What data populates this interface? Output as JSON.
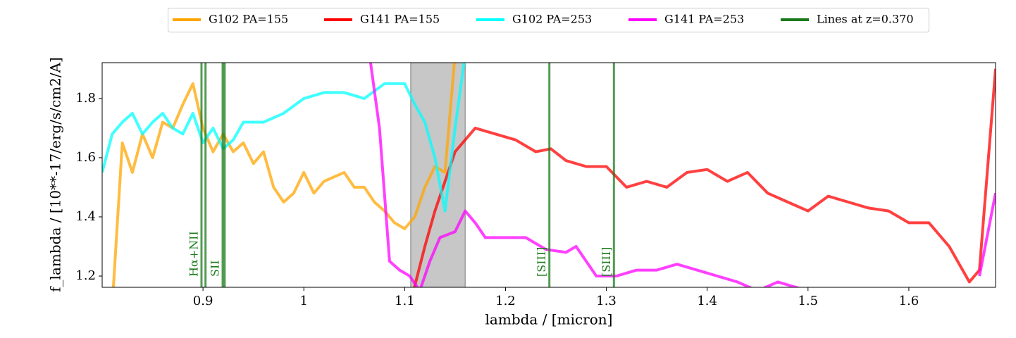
{
  "chart_data": {
    "type": "line",
    "xlabel": "lambda / [micron]",
    "ylabel": "f_lambda / [10**-17/erg/s/cm2/A]",
    "xlim": [
      0.8,
      1.686
    ],
    "ylim": [
      1.162,
      1.921
    ],
    "xticks": [
      0.9,
      1.0,
      1.1,
      1.2,
      1.3,
      1.4,
      1.5,
      1.6
    ],
    "yticks": [
      1.2,
      1.4,
      1.6,
      1.8
    ],
    "shaded_region": [
      1.106,
      1.16
    ],
    "lines_name": "Lines at z=0.370",
    "lines_color": "#1a7a1a",
    "lines": [
      {
        "x": 0.8985,
        "label": "Hα+NII"
      },
      {
        "x": 0.9025
      },
      {
        "x": 0.9195,
        "label": "SII"
      },
      {
        "x": 0.9215
      },
      {
        "x": 1.2435,
        "label": "[SIII]"
      },
      {
        "x": 1.3075,
        "label": "[SIII]"
      }
    ],
    "series": [
      {
        "name": "G102 PA=155",
        "color": "orange",
        "x": [
          0.8,
          0.81,
          0.82,
          0.83,
          0.84,
          0.85,
          0.86,
          0.87,
          0.88,
          0.89,
          0.9,
          0.91,
          0.92,
          0.93,
          0.94,
          0.95,
          0.96,
          0.97,
          0.98,
          0.99,
          1.0,
          1.01,
          1.02,
          1.04,
          1.05,
          1.06,
          1.07,
          1.08,
          1.09,
          1.1,
          1.11,
          1.12,
          1.13,
          1.14,
          1.15
        ],
        "values": [
          1.0,
          1.1,
          1.65,
          1.55,
          1.68,
          1.6,
          1.72,
          1.7,
          1.78,
          1.85,
          1.7,
          1.62,
          1.68,
          1.62,
          1.65,
          1.58,
          1.62,
          1.5,
          1.45,
          1.48,
          1.55,
          1.48,
          1.52,
          1.55,
          1.5,
          1.5,
          1.45,
          1.42,
          1.38,
          1.36,
          1.4,
          1.5,
          1.57,
          1.55,
          1.95
        ]
      },
      {
        "name": "G141 PA=155",
        "color": "red",
        "x": [
          1.105,
          1.12,
          1.13,
          1.15,
          1.17,
          1.19,
          1.21,
          1.23,
          1.245,
          1.26,
          1.28,
          1.3,
          1.32,
          1.34,
          1.36,
          1.38,
          1.4,
          1.42,
          1.44,
          1.46,
          1.48,
          1.5,
          1.52,
          1.54,
          1.56,
          1.58,
          1.6,
          1.62,
          1.64,
          1.66,
          1.67,
          1.686
        ],
        "values": [
          1.1,
          1.3,
          1.42,
          1.62,
          1.7,
          1.68,
          1.66,
          1.62,
          1.63,
          1.59,
          1.57,
          1.57,
          1.5,
          1.52,
          1.5,
          1.55,
          1.56,
          1.52,
          1.55,
          1.48,
          1.45,
          1.42,
          1.47,
          1.45,
          1.43,
          1.42,
          1.38,
          1.38,
          1.3,
          1.18,
          1.22,
          1.9
        ]
      },
      {
        "name": "G102 PA=253",
        "color": "cyan",
        "x": [
          0.8,
          0.81,
          0.82,
          0.83,
          0.84,
          0.85,
          0.86,
          0.87,
          0.88,
          0.89,
          0.9,
          0.91,
          0.92,
          0.93,
          0.94,
          0.96,
          0.98,
          1.0,
          1.02,
          1.04,
          1.06,
          1.08,
          1.1,
          1.11,
          1.12,
          1.13,
          1.14,
          1.15,
          1.16
        ],
        "values": [
          1.55,
          1.68,
          1.72,
          1.75,
          1.68,
          1.72,
          1.75,
          1.7,
          1.68,
          1.75,
          1.65,
          1.7,
          1.63,
          1.66,
          1.72,
          1.72,
          1.75,
          1.8,
          1.82,
          1.82,
          1.8,
          1.85,
          1.85,
          1.78,
          1.72,
          1.6,
          1.42,
          1.7,
          1.95
        ]
      },
      {
        "name": "G141 PA=253",
        "color": "magenta",
        "x": [
          1.065,
          1.075,
          1.085,
          1.095,
          1.105,
          1.115,
          1.125,
          1.135,
          1.15,
          1.16,
          1.17,
          1.18,
          1.2,
          1.22,
          1.24,
          1.26,
          1.27,
          1.28,
          1.29,
          1.31,
          1.33,
          1.35,
          1.37,
          1.39,
          1.41,
          1.43,
          1.45,
          1.47,
          1.49,
          1.51,
          1.6,
          1.67,
          1.686
        ],
        "values": [
          1.95,
          1.7,
          1.25,
          1.22,
          1.2,
          1.15,
          1.25,
          1.33,
          1.35,
          1.42,
          1.38,
          1.33,
          1.33,
          1.33,
          1.29,
          1.28,
          1.3,
          1.25,
          1.2,
          1.2,
          1.22,
          1.22,
          1.24,
          1.22,
          1.2,
          1.18,
          1.15,
          1.18,
          1.16,
          1.14,
          null,
          1.2,
          1.48
        ]
      }
    ]
  }
}
